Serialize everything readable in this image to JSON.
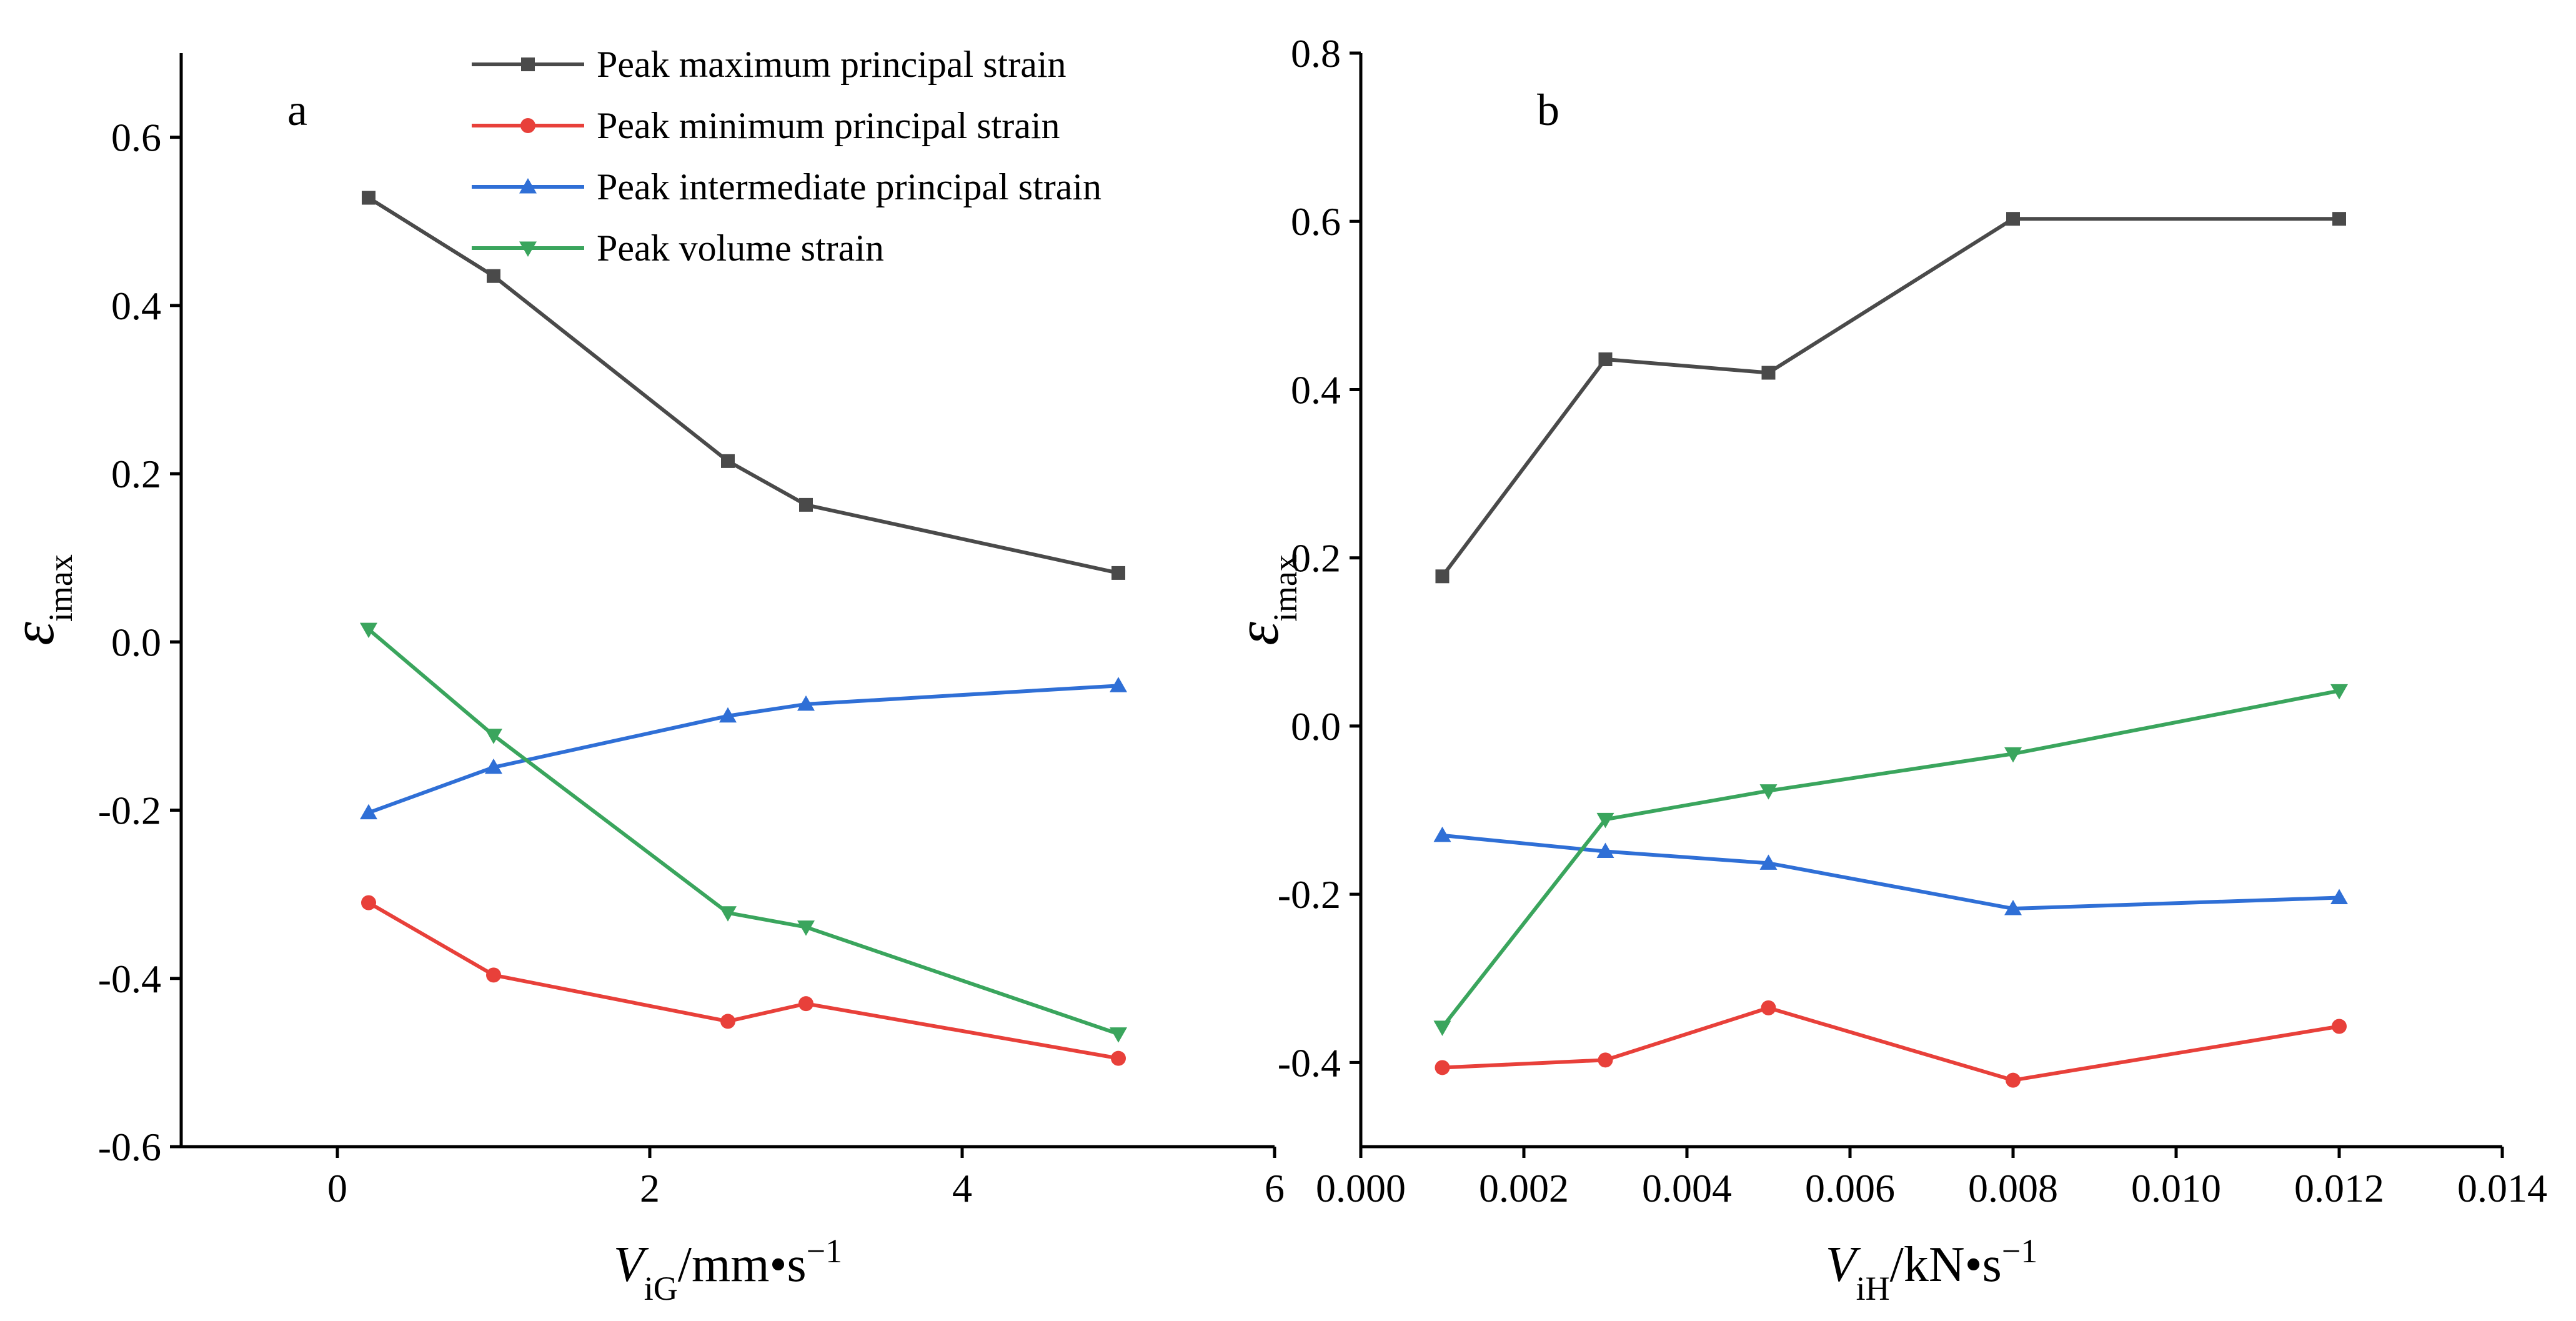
{
  "chart_data": [
    {
      "type": "line",
      "panel_label": "a",
      "x_label_var": "V",
      "x_label_sub": "iG",
      "x_label_unit": "/mm•s",
      "x_label_sup": "−1",
      "y_label_var": "ε",
      "y_label_sub": "imax",
      "xlim": [
        -1,
        6
      ],
      "ylim": [
        -0.6,
        0.7
      ],
      "x_ticks": [
        0,
        2,
        4,
        6
      ],
      "x_tick_labels": [
        "0",
        "2",
        "4",
        "6"
      ],
      "y_ticks": [
        -0.6,
        -0.4,
        -0.2,
        0.0,
        0.2,
        0.4,
        0.6
      ],
      "y_tick_labels": [
        "-0.6",
        "-0.4",
        "-0.2",
        "0.0",
        "0.2",
        "0.4",
        "0.6"
      ],
      "x": [
        0.2,
        1.0,
        2.5,
        3.0,
        5.0
      ],
      "series": [
        {
          "name": "Peak maximum principal strain",
          "color": "#4a4a4a",
          "marker": "square",
          "values": [
            0.528,
            0.435,
            0.215,
            0.163,
            0.082
          ]
        },
        {
          "name": "Peak minimum principal strain",
          "color": "#e8403a",
          "marker": "circle",
          "values": [
            -0.31,
            -0.396,
            -0.451,
            -0.43,
            -0.495
          ]
        },
        {
          "name": "Peak intermediate principal strain",
          "color": "#2f6fd6",
          "marker": "triangle-up",
          "values": [
            -0.203,
            -0.149,
            -0.088,
            -0.074,
            -0.052
          ]
        },
        {
          "name": "Peak volume strain",
          "color": "#3aa55d",
          "marker": "triangle-down",
          "values": [
            0.015,
            -0.111,
            -0.322,
            -0.339,
            -0.466
          ]
        }
      ]
    },
    {
      "type": "line",
      "panel_label": "b",
      "x_label_var": "V",
      "x_label_sub": "iH",
      "x_label_unit": "/kN•s",
      "x_label_sup": "−1",
      "y_label_var": "ε",
      "y_label_sub": "imax",
      "xlim": [
        0.0,
        0.014
      ],
      "ylim": [
        -0.5,
        0.8
      ],
      "x_ticks": [
        0.0,
        0.002,
        0.004,
        0.006,
        0.008,
        0.01,
        0.012,
        0.014
      ],
      "x_tick_labels": [
        "0.000",
        "0.002",
        "0.004",
        "0.006",
        "0.008",
        "0.010",
        "0.012",
        "0.014"
      ],
      "y_ticks": [
        -0.4,
        -0.2,
        0.0,
        0.2,
        0.4,
        0.6,
        0.8
      ],
      "y_tick_labels": [
        "-0.4",
        "-0.2",
        "0.0",
        "0.2",
        "0.4",
        "0.6",
        "0.8"
      ],
      "x": [
        0.001,
        0.003,
        0.005,
        0.008,
        0.012
      ],
      "series": [
        {
          "name": "Peak maximum principal strain",
          "color": "#4a4a4a",
          "marker": "square",
          "values": [
            0.178,
            0.436,
            0.42,
            0.603,
            0.603
          ]
        },
        {
          "name": "Peak minimum principal strain",
          "color": "#e8403a",
          "marker": "circle",
          "values": [
            -0.406,
            -0.397,
            -0.335,
            -0.421,
            -0.357
          ]
        },
        {
          "name": "Peak intermediate principal strain",
          "color": "#2f6fd6",
          "marker": "triangle-up",
          "values": [
            -0.13,
            -0.149,
            -0.163,
            -0.217,
            -0.204
          ]
        },
        {
          "name": "Peak volume strain",
          "color": "#3aa55d",
          "marker": "triangle-down",
          "values": [
            -0.358,
            -0.111,
            -0.077,
            -0.033,
            0.042
          ]
        }
      ]
    }
  ]
}
